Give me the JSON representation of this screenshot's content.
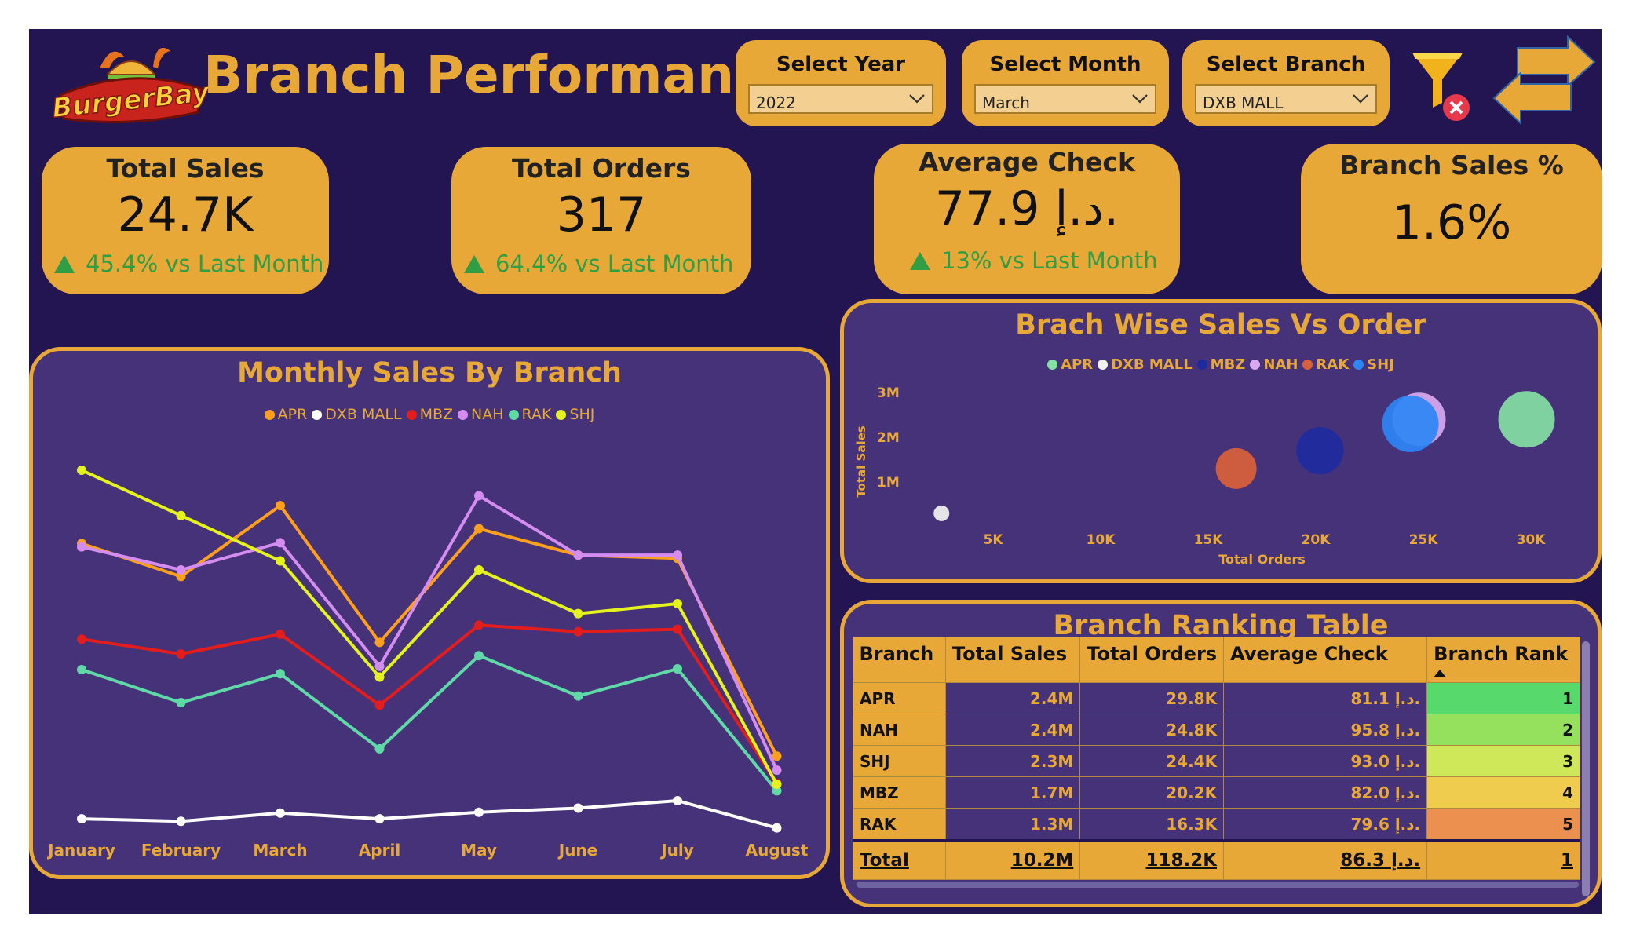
{
  "header": {
    "logo_text": "BurgerBay",
    "title": "Branch Performance"
  },
  "slicers": [
    {
      "label": "Select Year",
      "value": "2022"
    },
    {
      "label": "Select Month",
      "value": "March"
    },
    {
      "label": "Select Branch",
      "value": "DXB MALL"
    }
  ],
  "icons": {
    "clear_filter": "clear-filter-icon",
    "navigate": "swap-arrows-icon"
  },
  "kpis": [
    {
      "title": "Total Sales",
      "value": "24.7K",
      "delta": "45.4% vs Last Month"
    },
    {
      "title": "Total Orders",
      "value": "317",
      "delta": "64.4% vs Last Month"
    },
    {
      "title": "Average Check",
      "value": "77.9 د.إ.",
      "delta": "13% vs Last Month"
    },
    {
      "title": "Branch Sales %",
      "value": "1.6%"
    }
  ],
  "colors": {
    "background": "#231552",
    "panel": "#453279",
    "accent": "#e8a838",
    "positive": "#2f9e44"
  },
  "chart_data": [
    {
      "type": "line",
      "title": "Monthly Sales By Branch",
      "categories": [
        "January",
        "February",
        "March",
        "April",
        "May",
        "June",
        "July",
        "August"
      ],
      "ylim": [
        0,
        500
      ],
      "legend_position": "top",
      "grid": false,
      "series": [
        {
          "name": "APR",
          "color": "#ff9f1c",
          "values": [
            352,
            312,
            398,
            232,
            370,
            338,
            334,
            94
          ]
        },
        {
          "name": "DXB MALL",
          "color": "#ffffff",
          "values": [
            18,
            15,
            25,
            18,
            26,
            31,
            40,
            7
          ]
        },
        {
          "name": "MBZ",
          "color": "#e31c1c",
          "values": [
            236,
            218,
            242,
            156,
            253,
            245,
            248,
            61
          ]
        },
        {
          "name": "NAH",
          "color": "#d58cf0",
          "values": [
            348,
            320,
            353,
            203,
            410,
            338,
            338,
            77
          ]
        },
        {
          "name": "RAK",
          "color": "#5fd9a6",
          "values": [
            199,
            159,
            194,
            103,
            216,
            167,
            200,
            52
          ]
        },
        {
          "name": "SHJ",
          "color": "#e5f21c",
          "values": [
            441,
            386,
            331,
            190,
            320,
            267,
            279,
            60
          ]
        }
      ]
    },
    {
      "type": "scatter",
      "title": "Brach Wise Sales Vs Order",
      "xlabel": "Total Orders",
      "ylabel": "Total Sales",
      "x_ticks": [
        "5K",
        "10K",
        "15K",
        "20K",
        "25K",
        "30K"
      ],
      "y_ticks": [
        "1M",
        "2M",
        "3M"
      ],
      "xlim": [
        0,
        32000
      ],
      "ylim": [
        0,
        3200000
      ],
      "legend_position": "top",
      "series": [
        {
          "name": "APR",
          "color": "#84e0a4",
          "x": 29800,
          "y": 2400000
        },
        {
          "name": "DXB MALL",
          "color": "#f2f2f2",
          "x": 2600,
          "y": 300000
        },
        {
          "name": "MBZ",
          "color": "#1e2a9e",
          "x": 20200,
          "y": 1700000
        },
        {
          "name": "NAH",
          "color": "#d9a8f0",
          "x": 24800,
          "y": 2400000
        },
        {
          "name": "RAK",
          "color": "#d9613a",
          "x": 16300,
          "y": 1300000
        },
        {
          "name": "SHJ",
          "color": "#2c86f5",
          "x": 24400,
          "y": 2300000
        }
      ]
    },
    {
      "type": "table",
      "title": "Branch Ranking Table",
      "columns": [
        "Branch",
        "Total Sales",
        "Total Orders",
        "Average Check",
        "Branch Rank"
      ],
      "rows": [
        {
          "branch": "APR",
          "sales": "2.4M",
          "orders": "29.8K",
          "avg": "81.1 د.إ.",
          "rank": "1",
          "rank_color": "#57d96b"
        },
        {
          "branch": "NAH",
          "sales": "2.4M",
          "orders": "24.8K",
          "avg": "95.8 د.إ.",
          "rank": "2",
          "rank_color": "#95e05c"
        },
        {
          "branch": "SHJ",
          "sales": "2.3M",
          "orders": "24.4K",
          "avg": "93.0 د.إ.",
          "rank": "3",
          "rank_color": "#cfe85a"
        },
        {
          "branch": "MBZ",
          "sales": "1.7M",
          "orders": "20.2K",
          "avg": "82.0 د.إ.",
          "rank": "4",
          "rank_color": "#efcb4e"
        },
        {
          "branch": "RAK",
          "sales": "1.3M",
          "orders": "16.3K",
          "avg": "79.6 د.إ.",
          "rank": "5",
          "rank_color": "#ec9050"
        }
      ],
      "total": {
        "label": "Total",
        "sales": "10.2M",
        "orders": "118.2K",
        "avg": "86.3 د.إ.",
        "rank": "1"
      }
    }
  ]
}
